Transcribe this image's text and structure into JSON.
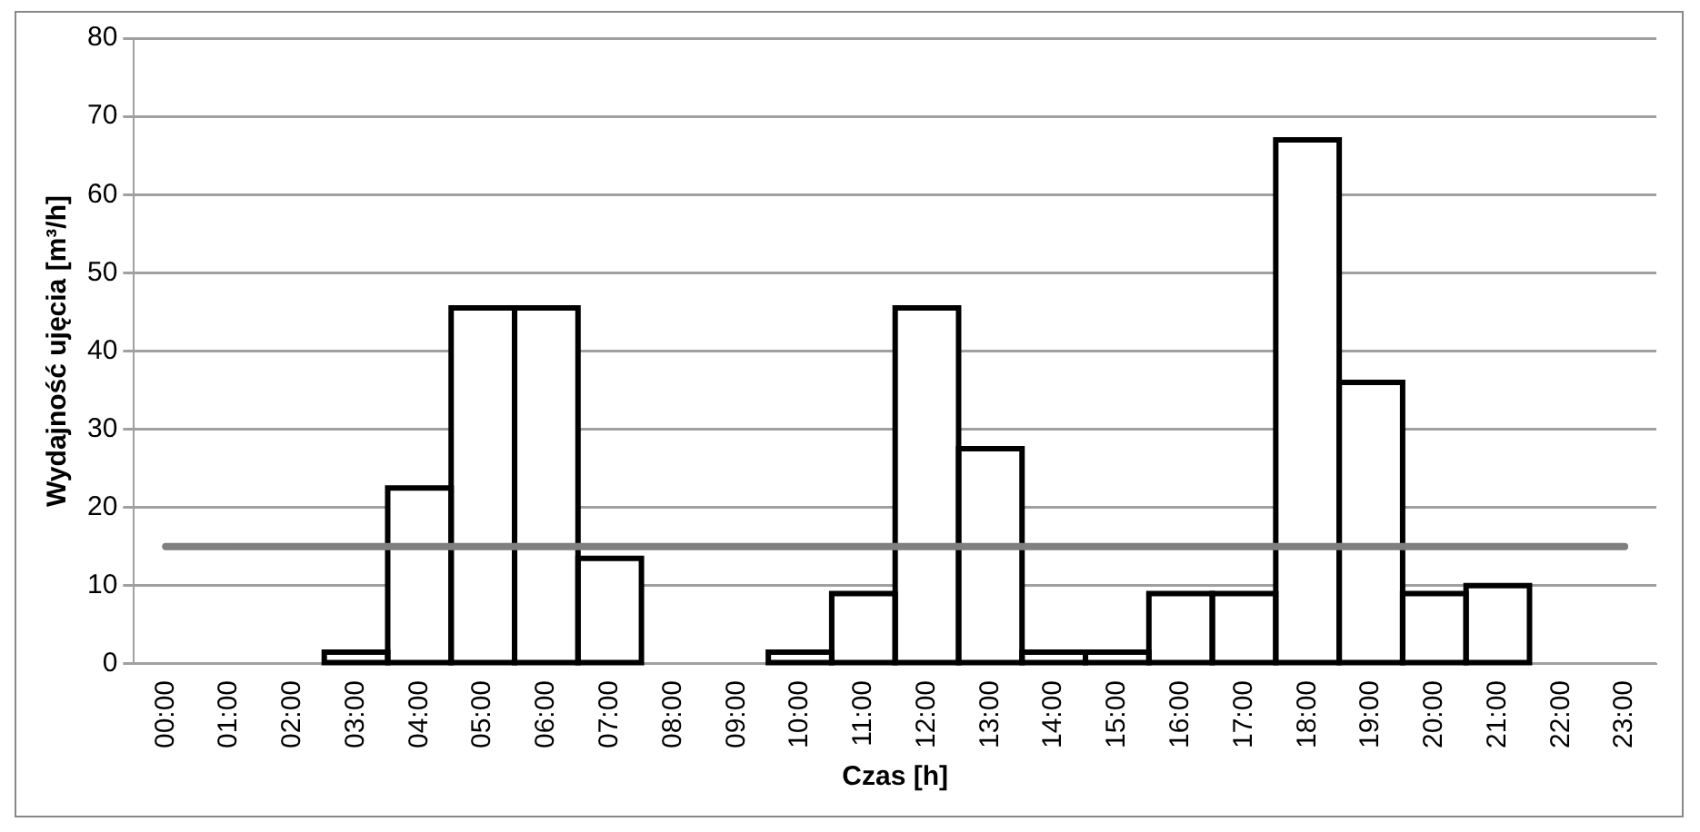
{
  "chart_data": {
    "type": "bar",
    "xlabel": "Czas [h]",
    "ylabel": "Wydajność ujęcia [m³/h]",
    "categories": [
      "00:00",
      "01:00",
      "02:00",
      "03:00",
      "04:00",
      "05:00",
      "06:00",
      "07:00",
      "08:00",
      "09:00",
      "10:00",
      "11:00",
      "12:00",
      "13:00",
      "14:00",
      "15:00",
      "16:00",
      "17:00",
      "18:00",
      "19:00",
      "20:00",
      "21:00",
      "22:00",
      "23:00"
    ],
    "series": [
      {
        "color": "#ffffff",
        "values": [
          null,
          null,
          null,
          1.5,
          22.5,
          45.5,
          45.5,
          13.5,
          null,
          null,
          1.5,
          9,
          45.5,
          27.5,
          1.5,
          1.5,
          9,
          9,
          67,
          36,
          9,
          10,
          null,
          null
        ]
      }
    ],
    "ylim": [
      0,
      80
    ],
    "yticks": [
      0,
      10,
      20,
      30,
      40,
      50,
      60,
      70,
      80
    ],
    "grid": "y",
    "legend": false,
    "ref_lines": [
      {
        "axis": "y",
        "value": 15,
        "color": "#7f7f7f"
      }
    ]
  }
}
